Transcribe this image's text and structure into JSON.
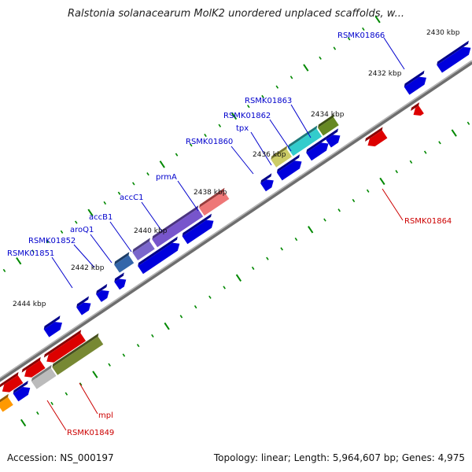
{
  "title": "Ralstonia solanacearum MolK2 unordered unplaced scaffolds, w...",
  "footer": {
    "accession": "Accession: NS_000197",
    "topology": "Topology: linear; Length: 5,964,607 bp; Genes: 4,975"
  },
  "colors": {
    "forward_label": "#0000cc",
    "reverse_label": "#cc0000",
    "tick": "#008800",
    "backbone": "#8a8a8a"
  },
  "kbp_labels": [
    "2430 kbp",
    "2432 kbp",
    "2434 kbp",
    "2436 kbp",
    "2438 kbp",
    "2440 kbp",
    "2442 kbp",
    "2444 kbp"
  ],
  "forward_gene_labels": [
    "RSMK01866",
    "RSMK01863",
    "RSMK01862",
    "tpx",
    "RSMK01860",
    "prmA",
    "accC1",
    "accB1",
    "aroQ1",
    "RSMK01852",
    "RSMK01851"
  ],
  "reverse_gene_labels": [
    "RSMK01864",
    "mpl",
    "RSMK01849"
  ]
}
